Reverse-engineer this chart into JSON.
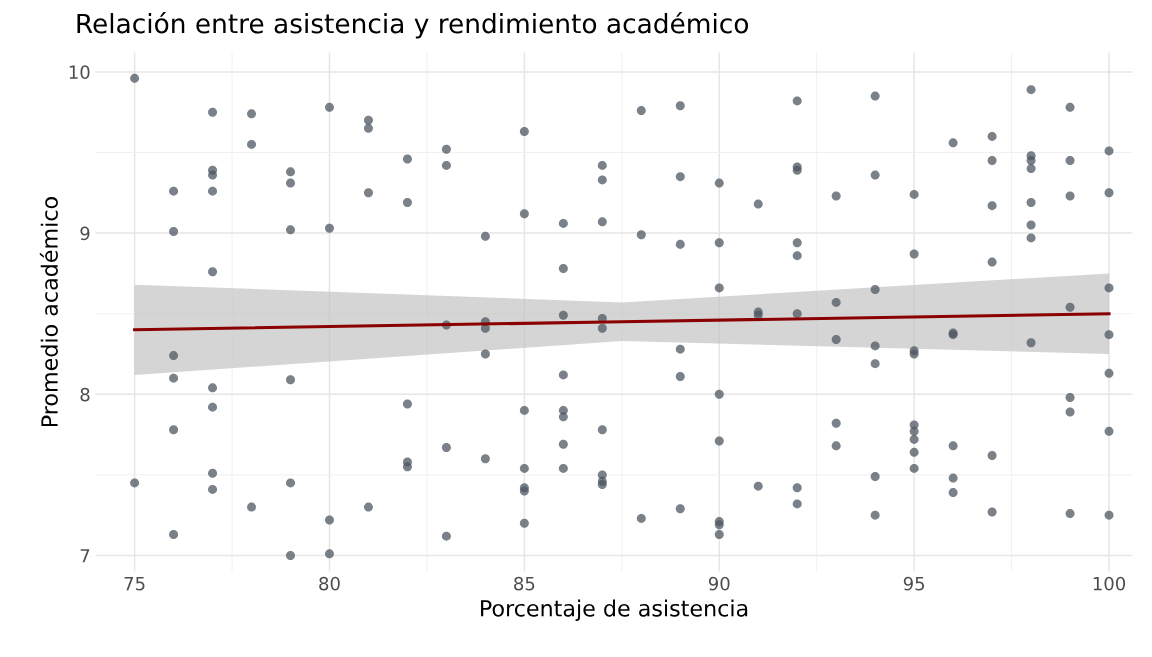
{
  "chart_data": {
    "type": "scatter",
    "title": "Relación entre asistencia y rendimiento académico",
    "xlabel": "Porcentaje de asistencia",
    "ylabel": "Promedio académico",
    "xlim": [
      74.0,
      100.6
    ],
    "ylim": [
      6.9,
      10.12
    ],
    "xticks": [
      75,
      80,
      85,
      90,
      95,
      100
    ],
    "yticks": [
      7,
      8,
      9,
      10
    ],
    "grid": true,
    "series": [
      {
        "marker": "circle",
        "color": "#4d5762",
        "x": [
          75,
          75,
          76,
          76,
          76,
          76,
          76,
          76,
          77,
          77,
          77,
          77,
          77,
          77,
          77,
          77,
          77,
          78,
          78,
          78,
          79,
          79,
          79,
          79,
          79,
          79,
          80,
          80,
          80,
          80,
          81,
          81,
          81,
          81,
          82,
          82,
          82,
          82,
          82,
          83,
          83,
          83,
          83,
          83,
          84,
          84,
          84,
          84,
          84,
          85,
          85,
          85,
          85,
          85,
          85,
          85,
          86,
          86,
          86,
          86,
          86,
          86,
          86,
          86,
          87,
          87,
          87,
          87,
          87,
          87,
          87,
          87,
          87,
          88,
          88,
          88,
          89,
          89,
          89,
          89,
          89,
          89,
          90,
          90,
          90,
          90,
          90,
          90,
          90,
          90,
          91,
          91,
          91,
          91,
          92,
          92,
          92,
          92,
          92,
          92,
          92,
          92,
          93,
          93,
          93,
          93,
          93,
          94,
          94,
          94,
          94,
          94,
          94,
          94,
          95,
          95,
          95,
          95,
          95,
          95,
          95,
          95,
          95,
          96,
          96,
          96,
          96,
          96,
          96,
          97,
          97,
          97,
          97,
          97,
          97,
          98,
          98,
          98,
          98,
          98,
          98,
          98,
          98,
          99,
          99,
          99,
          99,
          99,
          99,
          99,
          100,
          100,
          100,
          100,
          100,
          100,
          100
        ],
        "values": [
          9.96,
          7.45,
          9.26,
          9.01,
          8.24,
          8.1,
          7.78,
          7.13,
          9.75,
          9.39,
          9.36,
          9.26,
          8.76,
          8.04,
          7.92,
          7.51,
          7.41,
          9.74,
          9.55,
          7.3,
          9.38,
          9.31,
          9.02,
          8.09,
          7.45,
          7.0,
          9.78,
          9.03,
          7.22,
          7.01,
          9.7,
          9.65,
          9.25,
          7.3,
          9.46,
          9.19,
          7.94,
          7.58,
          7.55,
          9.52,
          9.42,
          8.43,
          7.67,
          7.12,
          8.98,
          8.45,
          8.41,
          8.25,
          7.6,
          9.63,
          9.12,
          7.9,
          7.54,
          7.42,
          7.4,
          7.2,
          9.06,
          8.78,
          8.49,
          8.12,
          7.9,
          7.86,
          7.69,
          7.54,
          9.42,
          9.33,
          9.07,
          8.47,
          8.41,
          7.78,
          7.5,
          7.46,
          7.44,
          9.76,
          8.99,
          7.23,
          9.79,
          9.35,
          8.93,
          8.28,
          8.11,
          7.29,
          9.31,
          8.94,
          8.66,
          8.0,
          7.71,
          7.21,
          7.19,
          7.13,
          9.18,
          8.51,
          8.49,
          7.43,
          9.82,
          9.41,
          9.39,
          8.94,
          8.86,
          8.5,
          7.42,
          7.32,
          9.23,
          8.57,
          8.34,
          7.82,
          7.68,
          9.85,
          9.36,
          8.65,
          8.3,
          8.19,
          7.49,
          7.25,
          9.24,
          8.87,
          8.27,
          8.25,
          7.81,
          7.77,
          7.72,
          7.64,
          7.54,
          9.56,
          8.38,
          8.37,
          7.68,
          7.48,
          7.39,
          9.6,
          9.45,
          9.17,
          8.82,
          7.62,
          7.27,
          9.89,
          9.48,
          9.45,
          9.4,
          9.19,
          9.05,
          8.97,
          8.32,
          9.78,
          9.45,
          9.23,
          8.54,
          7.98,
          7.89,
          7.26,
          9.51,
          9.25,
          8.66,
          8.37,
          8.13,
          7.77,
          7.25
        ]
      },
      {
        "type": "line",
        "color": "#8b0000",
        "x": [
          75,
          87.5,
          100
        ],
        "values": [
          8.4,
          8.45,
          8.5
        ],
        "lower": [
          8.12,
          8.33,
          8.25
        ],
        "upper": [
          8.68,
          8.57,
          8.75
        ]
      }
    ]
  }
}
